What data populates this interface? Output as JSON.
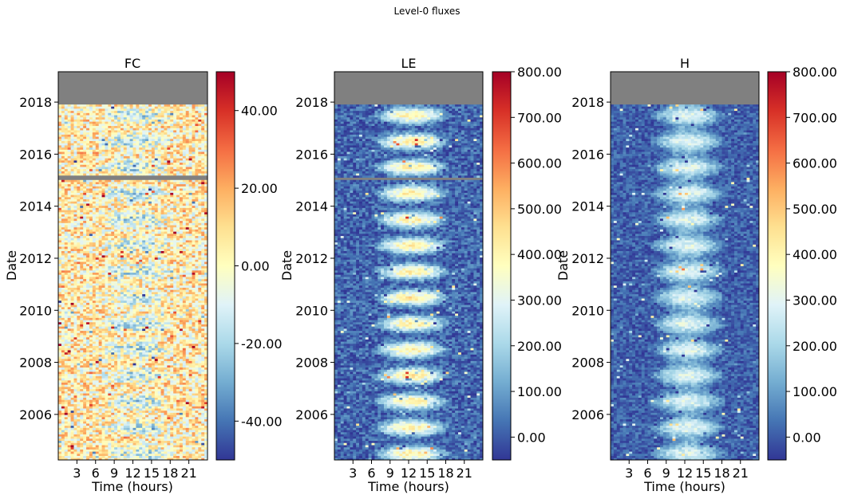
{
  "figure": {
    "suptitle": "Level-0 fluxes"
  },
  "colormap": {
    "name": "RdYlBu_r",
    "stops": [
      "#313695",
      "#4575b4",
      "#74add1",
      "#abd9e9",
      "#e0f3f8",
      "#ffffbf",
      "#fee090",
      "#fdae61",
      "#f46d43",
      "#d73027",
      "#a50026"
    ],
    "missing_color": "#808080"
  },
  "chart_data": [
    {
      "type": "heatmap",
      "title": "FC",
      "xlabel": "Time (hours)",
      "ylabel": "Date",
      "xlim": [
        0,
        24
      ],
      "xticks": [
        3,
        6,
        9,
        12,
        15,
        18,
        21
      ],
      "ylim": [
        "2004-04-01",
        "2019-03-01"
      ],
      "yticks": [
        "2006",
        "2008",
        "2010",
        "2012",
        "2014",
        "2016",
        "2018"
      ],
      "missing_periods": [
        [
          "2017-12-01",
          "2019-03-01"
        ],
        [
          "2015-01-01",
          "2015-03-01"
        ]
      ],
      "colorbar": {
        "vmin": -50,
        "vmax": 50,
        "ticks": [
          "-40.00",
          "-20.00",
          "0.00",
          "20.00",
          "40.00"
        ],
        "tick_values": [
          -40,
          -20,
          0,
          20,
          40
        ]
      },
      "pattern": {
        "night": 5,
        "day": -15,
        "noise": 20,
        "seasonal_amplitude": 1.0
      }
    },
    {
      "type": "heatmap",
      "title": "LE",
      "xlabel": "Time (hours)",
      "ylabel": "Date",
      "xlim": [
        0,
        24
      ],
      "xticks": [
        3,
        6,
        9,
        12,
        15,
        18,
        21
      ],
      "ylim": [
        "2004-04-01",
        "2019-03-01"
      ],
      "yticks": [
        "2006",
        "2008",
        "2010",
        "2012",
        "2014",
        "2016",
        "2018"
      ],
      "missing_periods": [
        [
          "2017-12-01",
          "2019-03-01"
        ],
        [
          "2015-01-01",
          "2015-02-01"
        ]
      ],
      "colorbar": {
        "vmin": -50,
        "vmax": 800,
        "ticks": [
          "0.00",
          "100.00",
          "200.00",
          "300.00",
          "400.00",
          "500.00",
          "600.00",
          "700.00",
          "800.00"
        ],
        "tick_values": [
          0,
          100,
          200,
          300,
          400,
          500,
          600,
          700,
          800
        ]
      },
      "pattern": {
        "night": 20,
        "day": 420,
        "noise": 70,
        "seasonal_amplitude": 1.0
      }
    },
    {
      "type": "heatmap",
      "title": "H",
      "xlabel": "Time (hours)",
      "ylabel": "Date",
      "xlim": [
        0,
        24
      ],
      "xticks": [
        3,
        6,
        9,
        12,
        15,
        18,
        21
      ],
      "ylim": [
        "2004-04-01",
        "2019-03-01"
      ],
      "yticks": [
        "2006",
        "2008",
        "2010",
        "2012",
        "2014",
        "2016",
        "2018"
      ],
      "missing_periods": [
        [
          "2017-12-01",
          "2019-03-01"
        ]
      ],
      "colorbar": {
        "vmin": -50,
        "vmax": 800,
        "ticks": [
          "0.00",
          "100.00",
          "200.00",
          "300.00",
          "400.00",
          "500.00",
          "600.00",
          "700.00",
          "800.00"
        ],
        "tick_values": [
          0,
          100,
          200,
          300,
          400,
          500,
          600,
          700,
          800
        ]
      },
      "pattern": {
        "night": 10,
        "day": 300,
        "noise": 55,
        "seasonal_amplitude": 0.6
      }
    }
  ]
}
